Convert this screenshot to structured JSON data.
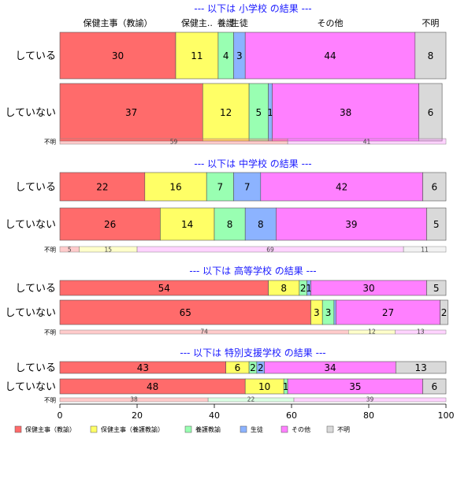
{
  "chart_data": {
    "type": "bar",
    "orientation": "horizontal-stacked-100",
    "xlim": [
      0,
      100
    ],
    "xticks": [
      "0",
      "20",
      "40",
      "60",
      "80",
      "100"
    ],
    "category_headers": [
      "保健主事（教諭）",
      "保健主..",
      "養護",
      "生徒",
      "その他",
      "不明"
    ],
    "legend": {
      "position": "bottom-left",
      "items": [
        {
          "label": "保健主事（教諭）",
          "color": "#FF6B6B"
        },
        {
          "label": "保健主事（養護教諭）",
          "color": "#FFFF66"
        },
        {
          "label": "養護教諭",
          "color": "#99FFB2"
        },
        {
          "label": "生徒",
          "color": "#8CB3FF"
        },
        {
          "label": "その他",
          "color": "#FF80FF"
        },
        {
          "label": "不明",
          "color": "#D9D9D9"
        }
      ]
    },
    "groups": [
      {
        "title": "--- 以下は 小学校 の結果 ---",
        "rows": [
          {
            "label": "している",
            "values": [
              30,
              11,
              4,
              3,
              44,
              8
            ],
            "labels": [
              "30",
              "11",
              "4",
              "3",
              "44",
              "8"
            ]
          },
          {
            "label": "していない",
            "values": [
              37,
              12,
              5,
              1,
              38,
              6
            ],
            "labels": [
              "37",
              "12",
              "5",
              "1",
              "38",
              "6"
            ]
          }
        ],
        "unknown_row": {
          "label": "不明",
          "values": [
            59,
            41
          ],
          "labels": [
            "59",
            "41"
          ],
          "colors": [
            "#FF6B6B",
            "#FF80FF"
          ]
        }
      },
      {
        "title": "--- 以下は 中学校 の結果 ---",
        "rows": [
          {
            "label": "している",
            "values": [
              22,
              16,
              7,
              7,
              42,
              6
            ],
            "labels": [
              "22",
              "16",
              "7",
              "7",
              "42",
              "6"
            ]
          },
          {
            "label": "していない",
            "values": [
              26,
              14,
              8,
              8,
              39,
              5
            ],
            "labels": [
              "26",
              "14",
              "8",
              "8",
              "39",
              "5"
            ]
          }
        ],
        "unknown_row": {
          "label": "不明",
          "values": [
            5,
            15,
            69,
            11
          ],
          "labels": [
            "5",
            "15",
            "69",
            "11"
          ],
          "colors": [
            "#FF6B6B",
            "#FFFF66",
            "#FF80FF",
            "#D9D9D9"
          ]
        }
      },
      {
        "title": "--- 以下は 高等学校 の結果 ---",
        "rows": [
          {
            "label": "している",
            "values": [
              54,
              8,
              2,
              1,
              30,
              5
            ],
            "labels": [
              "54",
              "8",
              "2",
              "1",
              "30",
              "5"
            ]
          },
          {
            "label": "していない",
            "values": [
              65,
              3,
              3,
              0.5,
              27,
              2
            ],
            "labels": [
              "65",
              "3",
              "3",
              "",
              "27",
              "2"
            ]
          }
        ],
        "unknown_row": {
          "label": "不明",
          "values": [
            74,
            12,
            13
          ],
          "labels": [
            "74",
            "12",
            "13"
          ],
          "colors": [
            "#FF6B6B",
            "#FFFF66",
            "#FF80FF"
          ]
        }
      },
      {
        "title": "--- 以下は 特別支援学校 の結果 ---",
        "rows": [
          {
            "label": "している",
            "values": [
              43,
              6,
              2,
              2,
              34,
              13
            ],
            "labels": [
              "43",
              "6",
              "2",
              "2",
              "34",
              "13"
            ]
          },
          {
            "label": "していない",
            "values": [
              48,
              10,
              1,
              0,
              35,
              6
            ],
            "labels": [
              "48",
              "10",
              "1",
              "",
              "35",
              "6"
            ]
          }
        ],
        "unknown_row": {
          "label": "不明",
          "values": [
            38,
            22,
            39
          ],
          "labels": [
            "38",
            "22",
            "39"
          ],
          "colors": [
            "#FF6B6B",
            "#99FFB2",
            "#FF80FF"
          ]
        }
      }
    ]
  }
}
